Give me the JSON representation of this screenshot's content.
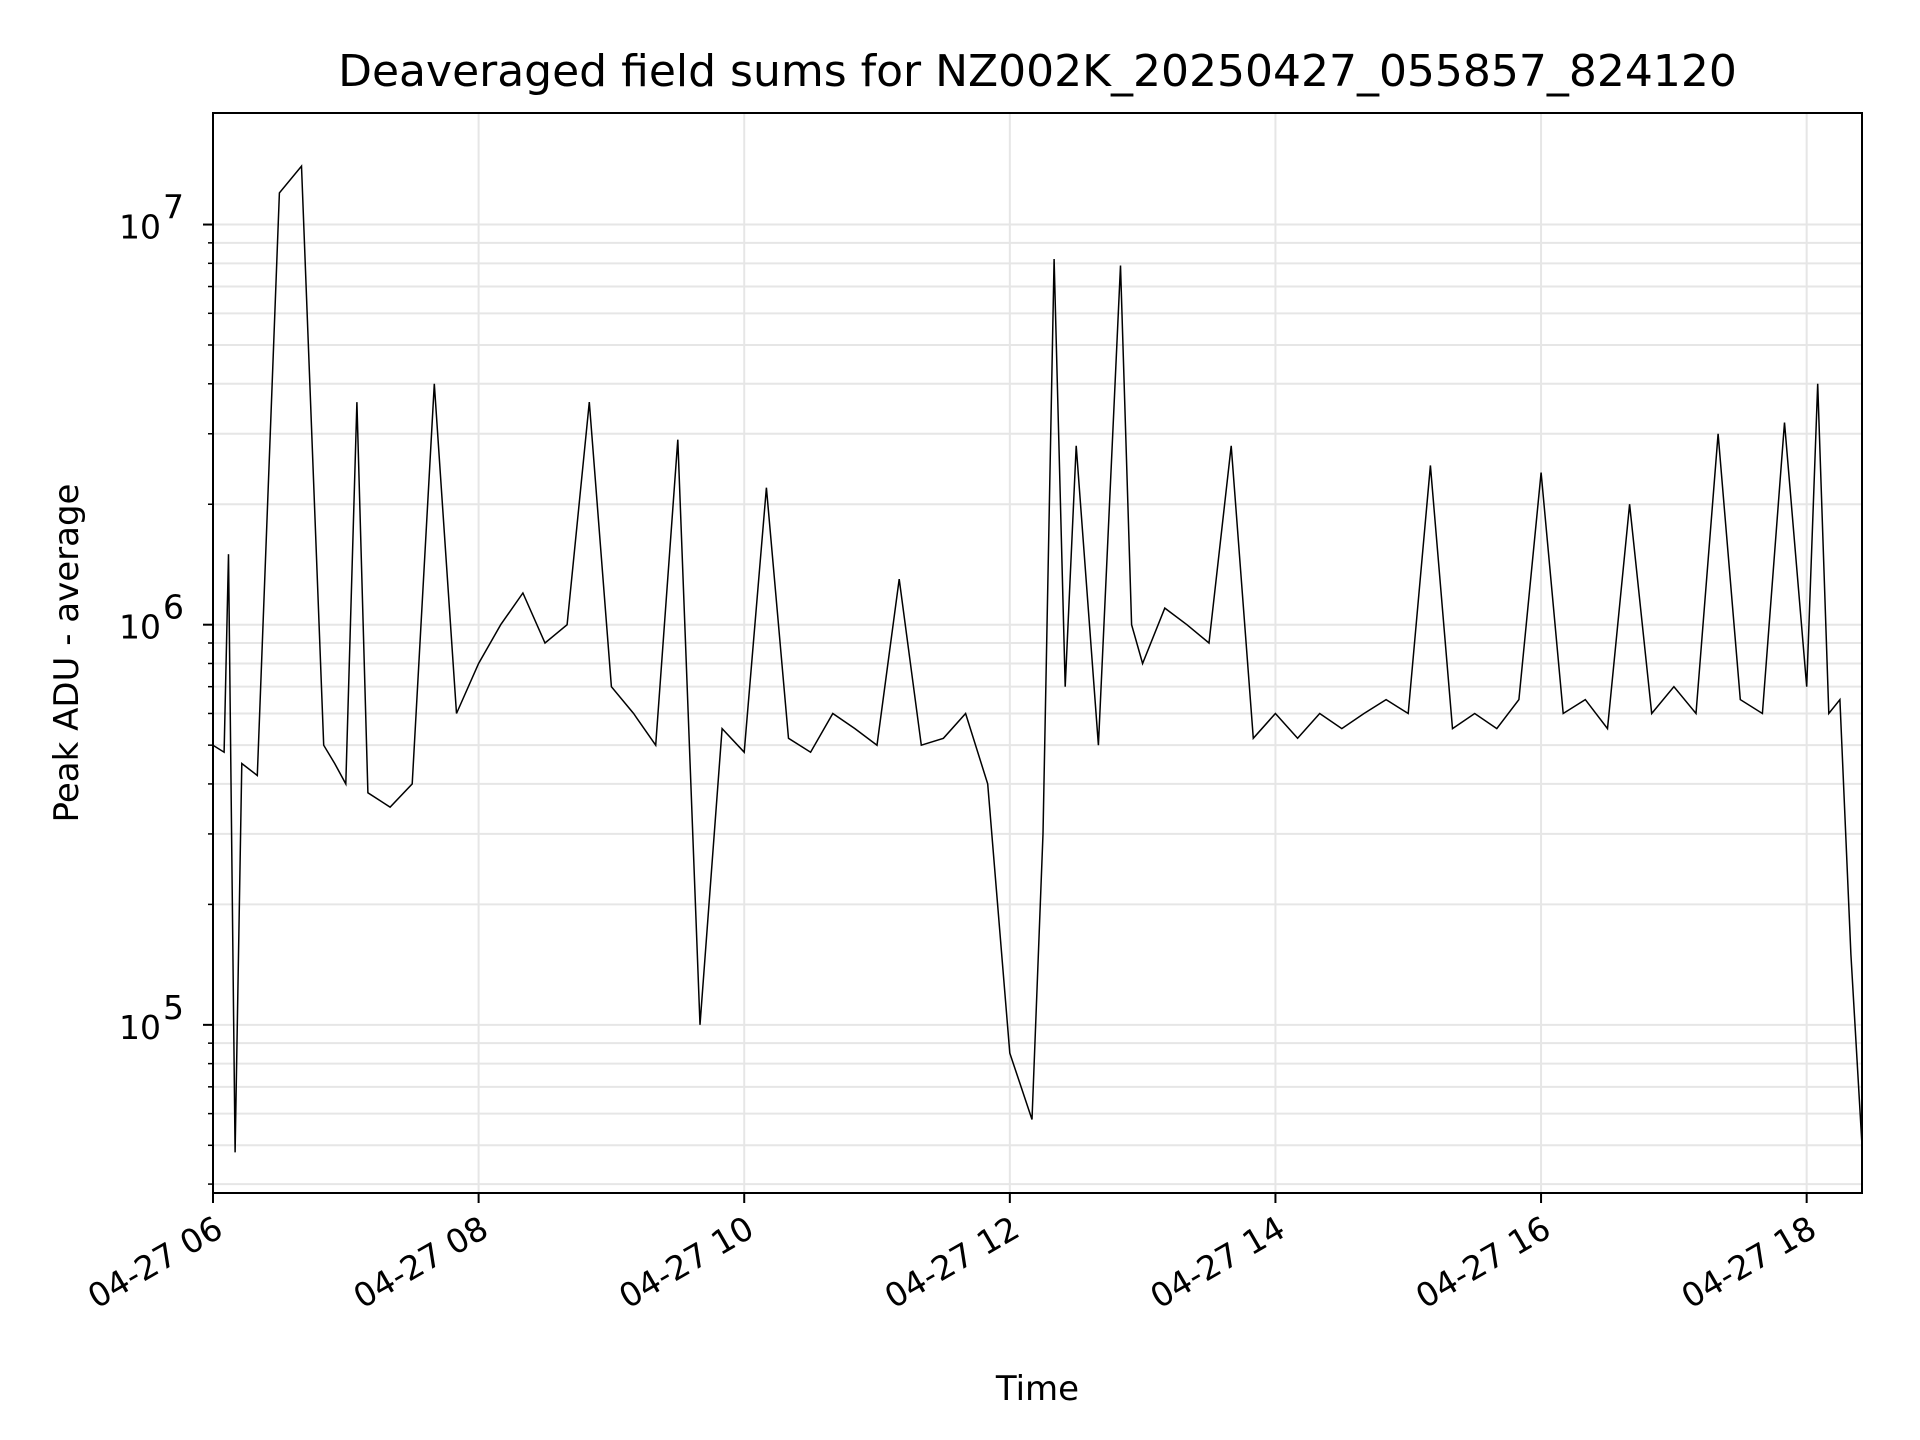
{
  "chart_data": {
    "type": "line",
    "title": "Deaveraged field sums for NZ002K_20250427_055857_824120",
    "xlabel": "Time",
    "ylabel": "Peak ADU - average",
    "y_scale": "log",
    "ylim": [
      38000,
      19000000
    ],
    "xlim": [
      "2025-04-27T06:00",
      "2025-04-27T18:25"
    ],
    "grid": true,
    "line_color": "#000000",
    "grid_color": "#e6e6e6",
    "x_ticks": [
      {
        "value": "2025-04-27T06:00",
        "label": "04-27 06"
      },
      {
        "value": "2025-04-27T08:00",
        "label": "04-27 08"
      },
      {
        "value": "2025-04-27T10:00",
        "label": "04-27 10"
      },
      {
        "value": "2025-04-27T12:00",
        "label": "04-27 12"
      },
      {
        "value": "2025-04-27T14:00",
        "label": "04-27 14"
      },
      {
        "value": "2025-04-27T16:00",
        "label": "04-27 16"
      },
      {
        "value": "2025-04-27T18:00",
        "label": "04-27 18"
      }
    ],
    "y_ticks": [
      {
        "value": 100000,
        "label_base": "10",
        "label_exp": "5"
      },
      {
        "value": 1000000,
        "label_base": "10",
        "label_exp": "6"
      },
      {
        "value": 10000000,
        "label_base": "10",
        "label_exp": "7"
      }
    ],
    "series": [
      {
        "x": [
          "2025-04-27T06:00",
          "2025-04-27T06:05",
          "2025-04-27T06:07",
          "2025-04-27T06:10",
          "2025-04-27T06:13",
          "2025-04-27T06:20",
          "2025-04-27T06:30",
          "2025-04-27T06:40",
          "2025-04-27T06:50",
          "2025-04-27T06:55",
          "2025-04-27T07:00",
          "2025-04-27T07:05",
          "2025-04-27T07:10",
          "2025-04-27T07:20",
          "2025-04-27T07:30",
          "2025-04-27T07:40",
          "2025-04-27T07:50",
          "2025-04-27T08:00",
          "2025-04-27T08:10",
          "2025-04-27T08:20",
          "2025-04-27T08:30",
          "2025-04-27T08:40",
          "2025-04-27T08:50",
          "2025-04-27T09:00",
          "2025-04-27T09:10",
          "2025-04-27T09:20",
          "2025-04-27T09:30",
          "2025-04-27T09:40",
          "2025-04-27T09:50",
          "2025-04-27T10:00",
          "2025-04-27T10:10",
          "2025-04-27T10:20",
          "2025-04-27T10:30",
          "2025-04-27T10:40",
          "2025-04-27T10:50",
          "2025-04-27T11:00",
          "2025-04-27T11:10",
          "2025-04-27T11:20",
          "2025-04-27T11:30",
          "2025-04-27T11:40",
          "2025-04-27T11:50",
          "2025-04-27T12:00",
          "2025-04-27T12:10",
          "2025-04-27T12:15",
          "2025-04-27T12:20",
          "2025-04-27T12:25",
          "2025-04-27T12:30",
          "2025-04-27T12:40",
          "2025-04-27T12:50",
          "2025-04-27T12:55",
          "2025-04-27T13:00",
          "2025-04-27T13:10",
          "2025-04-27T13:20",
          "2025-04-27T13:30",
          "2025-04-27T13:40",
          "2025-04-27T13:50",
          "2025-04-27T14:00",
          "2025-04-27T14:10",
          "2025-04-27T14:20",
          "2025-04-27T14:30",
          "2025-04-27T14:40",
          "2025-04-27T14:50",
          "2025-04-27T15:00",
          "2025-04-27T15:10",
          "2025-04-27T15:20",
          "2025-04-27T15:30",
          "2025-04-27T15:40",
          "2025-04-27T15:50",
          "2025-04-27T16:00",
          "2025-04-27T16:10",
          "2025-04-27T16:20",
          "2025-04-27T16:30",
          "2025-04-27T16:40",
          "2025-04-27T16:50",
          "2025-04-27T17:00",
          "2025-04-27T17:10",
          "2025-04-27T17:20",
          "2025-04-27T17:30",
          "2025-04-27T17:40",
          "2025-04-27T17:50",
          "2025-04-27T18:00",
          "2025-04-27T18:05",
          "2025-04-27T18:10",
          "2025-04-27T18:15",
          "2025-04-27T18:20",
          "2025-04-27T18:25"
        ],
        "y": [
          500000,
          480000,
          1500000,
          48000,
          450000,
          420000,
          12000000,
          14000000,
          500000,
          450000,
          400000,
          3600000,
          380000,
          350000,
          400000,
          4000000,
          600000,
          800000,
          1000000,
          1200000,
          900000,
          1000000,
          3600000,
          700000,
          600000,
          500000,
          2900000,
          100000,
          550000,
          480000,
          2200000,
          520000,
          480000,
          600000,
          550000,
          500000,
          1300000,
          500000,
          520000,
          600000,
          400000,
          85000,
          58000,
          300000,
          8200000,
          700000,
          2800000,
          500000,
          7900000,
          1000000,
          800000,
          1100000,
          1000000,
          900000,
          2800000,
          520000,
          600000,
          520000,
          600000,
          550000,
          600000,
          650000,
          600000,
          2500000,
          550000,
          600000,
          550000,
          650000,
          2400000,
          600000,
          650000,
          550000,
          2000000,
          600000,
          700000,
          600000,
          3000000,
          650000,
          600000,
          3200000,
          700000,
          4000000,
          600000,
          650000,
          150000,
          50000
        ]
      }
    ]
  }
}
